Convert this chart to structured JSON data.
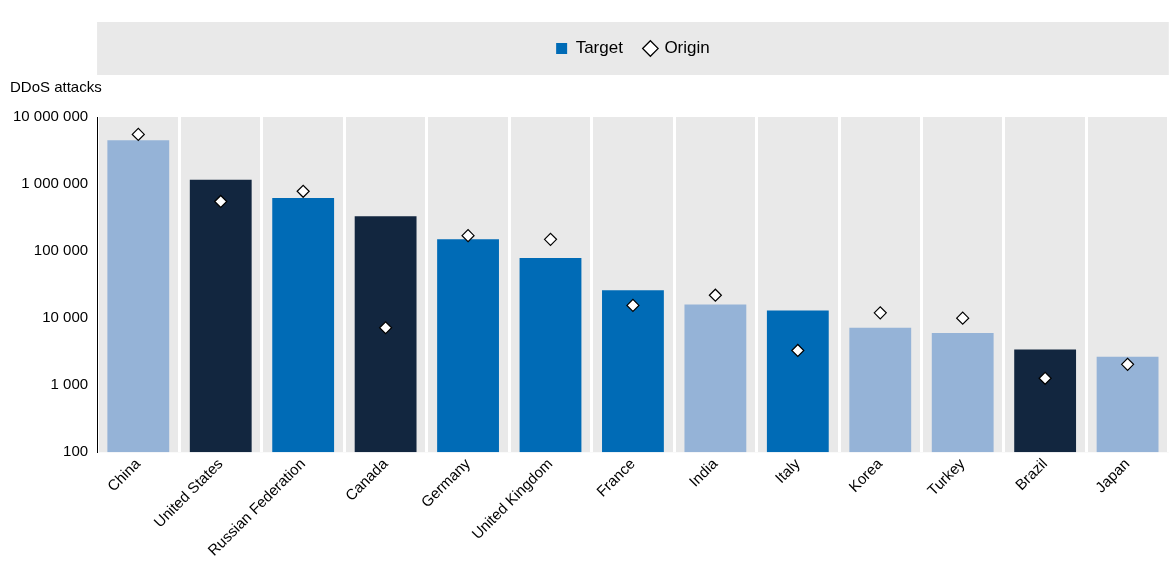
{
  "chart_data": {
    "type": "bar",
    "ylabel": "DDoS attacks",
    "log": "y",
    "grid": "x",
    "legend": "top",
    "categories": [
      "China",
      "United States",
      "Russian Federation",
      "Canada",
      "Germany",
      "United Kingdom",
      "France",
      "India",
      "Italy",
      "Korea",
      "Turkey",
      "Brazil",
      "Japan"
    ],
    "ylim": [
      100,
      10000000
    ],
    "yticks": [
      {
        "value": 100,
        "label": "100"
      },
      {
        "value": 1000,
        "label": "1 000"
      },
      {
        "value": 10000,
        "label": "10 000"
      },
      {
        "value": 100000,
        "label": "100 000"
      },
      {
        "value": 1000000,
        "label": "1 000 000"
      },
      {
        "value": 10000000,
        "label": "10 000 000"
      }
    ],
    "series": [
      {
        "name": "Target",
        "color": "#006bb6",
        "colors": [
          "#95b3d7",
          "#12263f",
          "#006bb6",
          "#12263f",
          "#006bb6",
          "#006bb6",
          "#006bb6",
          "#95b3d7",
          "#006bb6",
          "#95b3d7",
          "#95b3d7",
          "#12263f",
          "#95b3d7"
        ],
        "values": [
          4500000,
          1160000,
          620000,
          330000,
          150000,
          79000,
          26000,
          16000,
          13000,
          7200,
          6000,
          3400,
          2650
        ]
      },
      {
        "name": "Origin",
        "type": "scatter",
        "marker": "diamond",
        "color": "#000000",
        "x": [
          "China",
          "United States",
          "Russian Federation",
          "Canada",
          "Germany",
          "United Kingdom",
          "France",
          "India",
          "Italy",
          "Korea",
          "Turkey",
          "Brazil",
          "Japan"
        ],
        "values": [
          5500000,
          550000,
          780000,
          7200,
          170000,
          150000,
          15500,
          22000,
          3300,
          12000,
          10000,
          1270,
          2050
        ]
      }
    ]
  }
}
